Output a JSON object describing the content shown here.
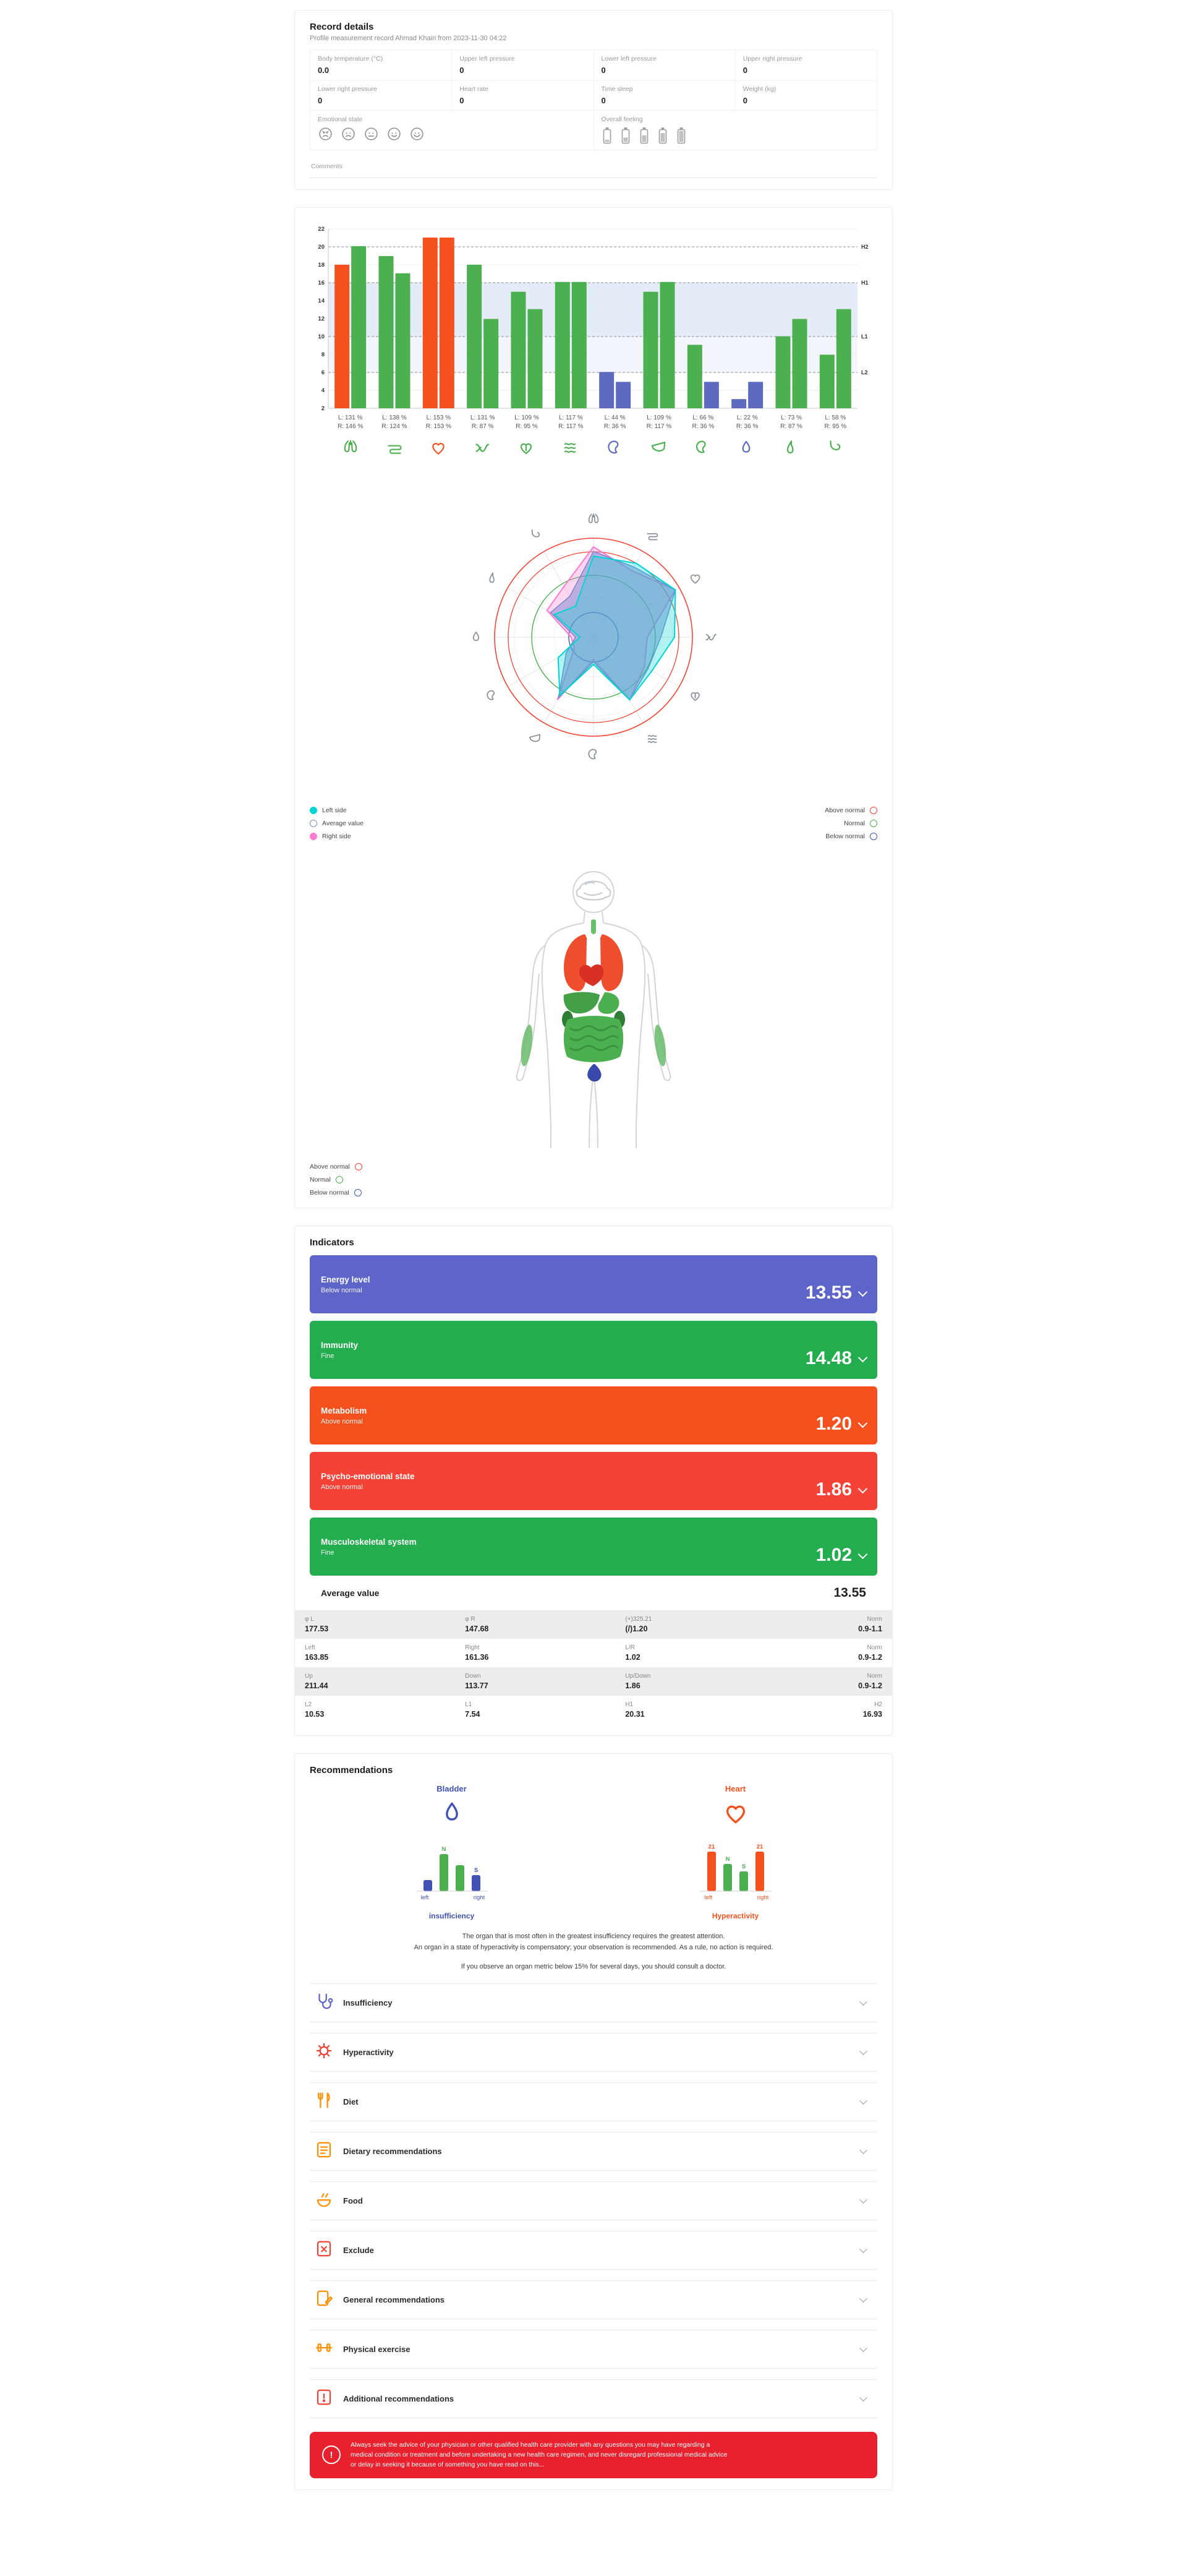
{
  "record": {
    "title": "Record details",
    "subtitle": "Profile measurement record Ahmad Khairi from 2023-11-30 04:22",
    "fields": [
      {
        "label": "Body temperature (°C)",
        "value": "0.0"
      },
      {
        "label": "Upper left pressure",
        "value": "0"
      },
      {
        "label": "Lower left pressure",
        "value": "0"
      },
      {
        "label": "Upper right pressure",
        "value": "0"
      },
      {
        "label": "Lower right pressure",
        "value": "0"
      },
      {
        "label": "Heart rate",
        "value": "0"
      },
      {
        "label": "Time sleep",
        "value": "0"
      },
      {
        "label": "Weight (kg)",
        "value": "0"
      }
    ],
    "emotional_state_label": "Emotional state",
    "emotional_icons": [
      "angry-face",
      "sad-face",
      "neutral-face",
      "smile-face",
      "happy-face"
    ],
    "overall_feeling_label": "Overall feeling",
    "feeling_icons": [
      "battery-1",
      "battery-2",
      "battery-3",
      "battery-4",
      "battery-5"
    ],
    "comments_label": "Comments"
  },
  "chart_data": [
    {
      "type": "bar",
      "title": "Meridian energy left/right",
      "categories": [
        "Lung",
        "Large intestine",
        "Heart",
        "Small intestine",
        "Pericardium",
        "Triple heater",
        "Spleen",
        "Liver",
        "Kidney",
        "Bladder",
        "Gallbladder",
        "Stomach"
      ],
      "ylim": [
        2,
        22
      ],
      "ytick_step": 2,
      "bands": {
        "H2": 20,
        "H1": 16,
        "L1": 10,
        "L2": 6
      },
      "pct_to_axis": 0.1375,
      "series": [
        {
          "name": "Left",
          "values_pct": [
            131,
            138,
            153,
            131,
            109,
            117,
            44,
            109,
            66,
            22,
            73,
            58
          ],
          "colors": [
            "red",
            "green",
            "red",
            "green",
            "green",
            "green",
            "purple",
            "green",
            "green",
            "purple",
            "green",
            "green"
          ]
        },
        {
          "name": "Right",
          "values_pct": [
            146,
            124,
            153,
            87,
            95,
            117,
            36,
            117,
            36,
            36,
            87,
            95
          ],
          "colors": [
            "green",
            "green",
            "red",
            "green",
            "green",
            "green",
            "purple",
            "green",
            "purple",
            "purple",
            "green",
            "green"
          ]
        }
      ],
      "icon_colors": [
        "green",
        "green",
        "red",
        "green",
        "green",
        "green",
        "purple",
        "green",
        "green",
        "purple",
        "green",
        "green"
      ],
      "bar_palette": {
        "green": "#4caf50",
        "red": "#f4511e",
        "purple": "#5c6bc0"
      }
    },
    {
      "type": "radar",
      "categories": [
        "Lung",
        "Large intestine",
        "Heart",
        "Small intestine",
        "Pericardium",
        "Triple heater",
        "Spleen",
        "Liver",
        "Kidney",
        "Bladder",
        "Gallbladder",
        "Stomach"
      ],
      "max_pct": 160,
      "rings": {
        "above_normal": [
          160,
          138
        ],
        "normal": 100,
        "below_normal": 40
      },
      "series": [
        {
          "name": "Left side",
          "values_pct": [
            131,
            138,
            153,
            131,
            109,
            117,
            44,
            109,
            66,
            22,
            73,
            58
          ]
        },
        {
          "name": "Right side",
          "values_pct": [
            146,
            124,
            153,
            87,
            95,
            117,
            36,
            117,
            36,
            36,
            87,
            95
          ]
        }
      ]
    }
  ],
  "legend": {
    "series": [
      {
        "label": "Left side",
        "color": "#00d5d5",
        "style": "filled"
      },
      {
        "label": "Average value",
        "color": "#7986cb",
        "style": "outline"
      },
      {
        "label": "Right side",
        "color": "#ff7ad1",
        "style": "filled"
      }
    ],
    "range": [
      {
        "label": "Above normal",
        "color": "#f44336"
      },
      {
        "label": "Normal",
        "color": "#4caf50"
      },
      {
        "label": "Below normal",
        "color": "#3f51b5"
      }
    ]
  },
  "indicators": {
    "title": "Indicators",
    "rows": [
      {
        "title": "Energy level",
        "status": "Below normal",
        "value": "13.55",
        "color": "#5e65c9"
      },
      {
        "title": "Immunity",
        "status": "Fine",
        "value": "14.48",
        "color": "#23ad4e"
      },
      {
        "title": "Metabolism",
        "status": "Above normal",
        "value": "1.20",
        "color": "#f4511e"
      },
      {
        "title": "Psycho-emotional state",
        "status": "Above normal",
        "value": "1.86",
        "color": "#f44336"
      },
      {
        "title": "Musculoskeletal system",
        "status": "Fine",
        "value": "1.02",
        "color": "#23ad4e"
      }
    ],
    "average_label": "Average value",
    "average_value": "13.55",
    "stats_table": [
      [
        {
          "label": "φ L",
          "value": "177.53"
        },
        {
          "label": "φ R",
          "value": "147.68"
        },
        {
          "label": "(+)325.21",
          "value": "(/)1.20"
        },
        {
          "label": "Norm",
          "value": "0.9-1.1"
        }
      ],
      [
        {
          "label": "Left",
          "value": "163.85"
        },
        {
          "label": "Right",
          "value": "161.36"
        },
        {
          "label": "L/R",
          "value": "1.02"
        },
        {
          "label": "Norm",
          "value": "0.9-1.2"
        }
      ],
      [
        {
          "label": "Up",
          "value": "211.44"
        },
        {
          "label": "Down",
          "value": "113.77"
        },
        {
          "label": "Up/Down",
          "value": "1.86"
        },
        {
          "label": "Norm",
          "value": "0.9-1.2"
        }
      ],
      [
        {
          "label": "L2",
          "value": "10.53"
        },
        {
          "label": "L1",
          "value": "7.54"
        },
        {
          "label": "H1",
          "value": "20.31"
        },
        {
          "label": "H2",
          "value": "16.93"
        }
      ]
    ]
  },
  "recommendations": {
    "title": "Recommendations",
    "organs": [
      {
        "name": "Bladder",
        "state": "insufficiency",
        "color": "#3f51b5",
        "icon": "bladder",
        "bars": [
          {
            "top": "",
            "color": "#3f51b5",
            "height": 18
          },
          {
            "top": "N",
            "color": "#4caf50",
            "height": 60
          },
          {
            "top": "",
            "color": "#4caf50",
            "height": 42
          },
          {
            "top": "S",
            "color": "#3f51b5",
            "height": 26
          }
        ],
        "axis_labels": {
          "left": "left",
          "right": "right"
        }
      },
      {
        "name": "Heart",
        "state": "Hyperactivity",
        "color": "#f4511e",
        "icon": "heart",
        "bars": [
          {
            "top": "21",
            "color": "#f4511e",
            "height": 64
          },
          {
            "top": "N",
            "color": "#4caf50",
            "height": 44
          },
          {
            "top": "S",
            "color": "#4caf50",
            "height": 32
          },
          {
            "top": "21",
            "color": "#f4511e",
            "height": 64
          }
        ],
        "axis_labels": {
          "left": "left",
          "right": "right"
        }
      }
    ],
    "notes": [
      "The organ that is most often in the greatest insufficiency requires the greatest attention.",
      "An organ in a state of hyperactivity is compensatory; your observation is recommended. As a rule, no action is required.",
      "If you observe an organ metric below 15% for several days, you should consult a doctor."
    ],
    "accordions": [
      {
        "label": "Insufficiency",
        "icon": "stethoscope",
        "color": "#5e65c9"
      },
      {
        "label": "Hyperactivity",
        "icon": "virus",
        "color": "#f44336"
      },
      {
        "label": "Diet",
        "icon": "cutlery",
        "color": "#ff8f00"
      },
      {
        "label": "Dietary recommendations",
        "icon": "checklist",
        "color": "#ff8f00"
      },
      {
        "label": "Food",
        "icon": "food",
        "color": "#ff8f00"
      },
      {
        "label": "Exclude",
        "icon": "exclude",
        "color": "#f44336"
      },
      {
        "label": "General recommendations",
        "icon": "document-edit",
        "color": "#ff8f00"
      },
      {
        "label": "Physical exercise",
        "icon": "exercise",
        "color": "#ff8f00"
      },
      {
        "label": "Additional recommendations",
        "icon": "document-warning",
        "color": "#f44336"
      }
    ],
    "disclaimer": "Always seek the advice of your physician or other qualified health care provider with any questions you may have regarding a medical condition or treatment and before undertaking a new health care regimen, and never disregard professional medical advice or delay in seeking it because of something you have read on this..."
  }
}
